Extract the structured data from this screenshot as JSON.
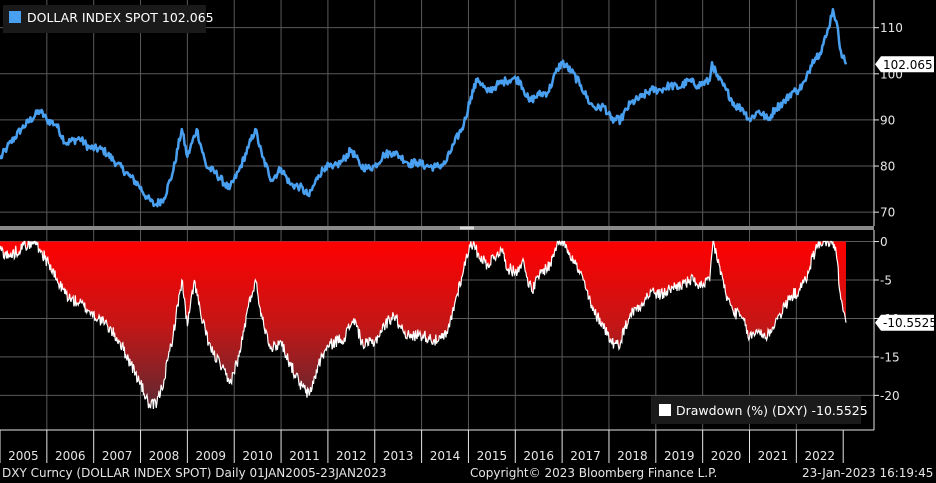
{
  "colors": {
    "background": "#000000",
    "grid": "#5a5a5a",
    "price_line": "#4aa0f0",
    "drawdown_fill_top": "#ff0000",
    "drawdown_fill_bottom": "#6a2a30",
    "drawdown_line": "#ffffff",
    "axis_text": "#e6e6e6",
    "badge_bg": "#ffffff",
    "badge_text": "#000000"
  },
  "legend": {
    "top_label": "DOLLAR INDEX SPOT 102.065",
    "bottom_label": "Drawdown (%) (DXY) -10.5525"
  },
  "badges": {
    "price": "102.065",
    "drawdown": "-10.5525"
  },
  "footer": {
    "left": "DXY Curncy (DOLLAR INDEX SPOT)  Daily 01JAN2005-23JAN2023",
    "center": "Copyright© 2023 Bloomberg Finance L.P.",
    "right": "23-Jan-2023 16:19:45"
  },
  "chart_data": [
    {
      "type": "line",
      "series": [
        {
          "name": "DOLLAR INDEX SPOT",
          "last": 102.065
        }
      ],
      "ylim": [
        67,
        116
      ],
      "yticks": [
        "70",
        "80",
        "90",
        "100",
        "110"
      ],
      "xlim": [
        2005.0,
        2023.06
      ],
      "points": [
        [
          2005.0,
          81.5
        ],
        [
          2005.15,
          84
        ],
        [
          2005.45,
          88
        ],
        [
          2005.85,
          92
        ],
        [
          2006.0,
          90
        ],
        [
          2006.2,
          89
        ],
        [
          2006.4,
          85
        ],
        [
          2006.7,
          86
        ],
        [
          2006.9,
          84
        ],
        [
          2007.2,
          83.5
        ],
        [
          2007.5,
          80.5
        ],
        [
          2007.75,
          78
        ],
        [
          2007.95,
          76
        ],
        [
          2008.15,
          73
        ],
        [
          2008.3,
          71.5
        ],
        [
          2008.5,
          73
        ],
        [
          2008.7,
          79
        ],
        [
          2008.88,
          88
        ],
        [
          2009.0,
          82
        ],
        [
          2009.2,
          88
        ],
        [
          2009.4,
          80
        ],
        [
          2009.6,
          78.5
        ],
        [
          2009.9,
          75
        ],
        [
          2010.1,
          79
        ],
        [
          2010.3,
          84
        ],
        [
          2010.45,
          88
        ],
        [
          2010.6,
          82
        ],
        [
          2010.8,
          77
        ],
        [
          2011.0,
          79.5
        ],
        [
          2011.2,
          76
        ],
        [
          2011.4,
          75.5
        ],
        [
          2011.6,
          73.5
        ],
        [
          2011.8,
          78
        ],
        [
          2011.95,
          80
        ],
        [
          2012.1,
          79.5
        ],
        [
          2012.3,
          81
        ],
        [
          2012.5,
          83.5
        ],
        [
          2012.7,
          80
        ],
        [
          2012.85,
          79.5
        ],
        [
          2013.0,
          80
        ],
        [
          2013.2,
          82.5
        ],
        [
          2013.4,
          83
        ],
        [
          2013.55,
          82
        ],
        [
          2013.75,
          80.5
        ],
        [
          2013.9,
          80.8
        ],
        [
          2014.1,
          80
        ],
        [
          2014.3,
          79.8
        ],
        [
          2014.5,
          80.5
        ],
        [
          2014.7,
          85
        ],
        [
          2014.9,
          89
        ],
        [
          2015.05,
          95
        ],
        [
          2015.2,
          99
        ],
        [
          2015.4,
          96
        ],
        [
          2015.6,
          97.5
        ],
        [
          2015.8,
          98.5
        ],
        [
          2015.95,
          99
        ],
        [
          2016.1,
          98.5
        ],
        [
          2016.3,
          94
        ],
        [
          2016.5,
          95.5
        ],
        [
          2016.7,
          96
        ],
        [
          2016.9,
          101
        ],
        [
          2017.0,
          102.5
        ],
        [
          2017.2,
          100.5
        ],
        [
          2017.4,
          97.5
        ],
        [
          2017.6,
          93.5
        ],
        [
          2017.75,
          92.5
        ],
        [
          2017.9,
          93
        ],
        [
          2018.05,
          90
        ],
        [
          2018.25,
          90
        ],
        [
          2018.45,
          93.5
        ],
        [
          2018.7,
          95
        ],
        [
          2018.9,
          96.5
        ],
        [
          2019.1,
          96.5
        ],
        [
          2019.3,
          97.5
        ],
        [
          2019.5,
          97
        ],
        [
          2019.7,
          98.5
        ],
        [
          2019.9,
          97.5
        ],
        [
          2020.15,
          98.5
        ],
        [
          2020.2,
          102.5
        ],
        [
          2020.3,
          99.5
        ],
        [
          2020.5,
          96.5
        ],
        [
          2020.7,
          93
        ],
        [
          2020.85,
          92.5
        ],
        [
          2021.0,
          90
        ],
        [
          2021.2,
          92
        ],
        [
          2021.4,
          90
        ],
        [
          2021.55,
          92.5
        ],
        [
          2021.75,
          94
        ],
        [
          2021.9,
          96
        ],
        [
          2022.05,
          96.5
        ],
        [
          2022.2,
          98.5
        ],
        [
          2022.35,
          103
        ],
        [
          2022.5,
          104.5
        ],
        [
          2022.65,
          108.5
        ],
        [
          2022.78,
          114
        ],
        [
          2022.85,
          111.5
        ],
        [
          2022.95,
          105
        ],
        [
          2023.06,
          102.065
        ]
      ]
    },
    {
      "type": "area",
      "series": [
        {
          "name": "Drawdown (%) (DXY)",
          "last": -10.5525
        }
      ],
      "ylim": [
        -24.5,
        1.5
      ],
      "yticks": [
        "0",
        "-5",
        "-10",
        "-15",
        "-20"
      ],
      "xlim": [
        2005.0,
        2023.06
      ],
      "points": [
        [
          2005.0,
          -1
        ],
        [
          2005.2,
          -2
        ],
        [
          2005.5,
          -0.5
        ],
        [
          2005.75,
          0
        ],
        [
          2005.85,
          -1
        ],
        [
          2006.05,
          -3
        ],
        [
          2006.25,
          -5.5
        ],
        [
          2006.5,
          -7.5
        ],
        [
          2006.7,
          -8
        ],
        [
          2006.9,
          -9
        ],
        [
          2007.1,
          -10
        ],
        [
          2007.3,
          -11
        ],
        [
          2007.55,
          -13
        ],
        [
          2007.8,
          -16
        ],
        [
          2008.0,
          -18.5
        ],
        [
          2008.2,
          -21.5
        ],
        [
          2008.35,
          -21
        ],
        [
          2008.5,
          -18
        ],
        [
          2008.7,
          -12
        ],
        [
          2008.88,
          -5
        ],
        [
          2009.0,
          -11
        ],
        [
          2009.15,
          -5
        ],
        [
          2009.3,
          -10
        ],
        [
          2009.5,
          -14
        ],
        [
          2009.7,
          -16
        ],
        [
          2009.9,
          -18.5
        ],
        [
          2010.1,
          -15
        ],
        [
          2010.3,
          -8.5
        ],
        [
          2010.45,
          -5
        ],
        [
          2010.6,
          -10
        ],
        [
          2010.8,
          -14
        ],
        [
          2011.0,
          -13
        ],
        [
          2011.2,
          -16
        ],
        [
          2011.4,
          -18.5
        ],
        [
          2011.6,
          -20
        ],
        [
          2011.8,
          -16
        ],
        [
          2011.95,
          -14
        ],
        [
          2012.15,
          -13
        ],
        [
          2012.35,
          -12.5
        ],
        [
          2012.55,
          -10
        ],
        [
          2012.75,
          -13.5
        ],
        [
          2013.0,
          -13
        ],
        [
          2013.2,
          -11
        ],
        [
          2013.4,
          -9.5
        ],
        [
          2013.55,
          -11
        ],
        [
          2013.75,
          -12.5
        ],
        [
          2013.95,
          -12
        ],
        [
          2014.15,
          -12.5
        ],
        [
          2014.35,
          -13
        ],
        [
          2014.55,
          -12
        ],
        [
          2014.75,
          -7
        ],
        [
          2014.9,
          -3.5
        ],
        [
          2015.05,
          0
        ],
        [
          2015.2,
          -1.5
        ],
        [
          2015.4,
          -3
        ],
        [
          2015.55,
          -2
        ],
        [
          2015.7,
          -1
        ],
        [
          2015.85,
          -3.5
        ],
        [
          2016.0,
          -4
        ],
        [
          2016.15,
          -2.5
        ],
        [
          2016.35,
          -6.5
        ],
        [
          2016.55,
          -4
        ],
        [
          2016.75,
          -3
        ],
        [
          2016.9,
          0
        ],
        [
          2017.05,
          0
        ],
        [
          2017.25,
          -2.5
        ],
        [
          2017.45,
          -5
        ],
        [
          2017.65,
          -9
        ],
        [
          2017.85,
          -10.5
        ],
        [
          2018.05,
          -13
        ],
        [
          2018.2,
          -13.5
        ],
        [
          2018.45,
          -9.5
        ],
        [
          2018.7,
          -8
        ],
        [
          2018.9,
          -6.5
        ],
        [
          2019.1,
          -7
        ],
        [
          2019.35,
          -6
        ],
        [
          2019.6,
          -5.5
        ],
        [
          2019.8,
          -5
        ],
        [
          2020.0,
          -6
        ],
        [
          2020.15,
          -5
        ],
        [
          2020.22,
          0
        ],
        [
          2020.35,
          -3
        ],
        [
          2020.5,
          -7
        ],
        [
          2020.65,
          -9
        ],
        [
          2020.85,
          -10
        ],
        [
          2021.0,
          -12.5
        ],
        [
          2021.2,
          -11.5
        ],
        [
          2021.35,
          -12.5
        ],
        [
          2021.55,
          -10.5
        ],
        [
          2021.75,
          -8.5
        ],
        [
          2021.9,
          -7
        ],
        [
          2022.05,
          -6.5
        ],
        [
          2022.2,
          -5
        ],
        [
          2022.35,
          -2
        ],
        [
          2022.5,
          0
        ],
        [
          2022.65,
          0
        ],
        [
          2022.78,
          0
        ],
        [
          2022.85,
          -1.5
        ],
        [
          2022.95,
          -7.5
        ],
        [
          2023.06,
          -10.5525
        ]
      ]
    }
  ],
  "x_axis": {
    "tick_labels": [
      "2005",
      "2006",
      "2007",
      "2008",
      "2009",
      "2010",
      "2011",
      "2012",
      "2013",
      "2014",
      "2015",
      "2016",
      "2017",
      "2018",
      "2019",
      "2020",
      "2021",
      "2022"
    ]
  }
}
